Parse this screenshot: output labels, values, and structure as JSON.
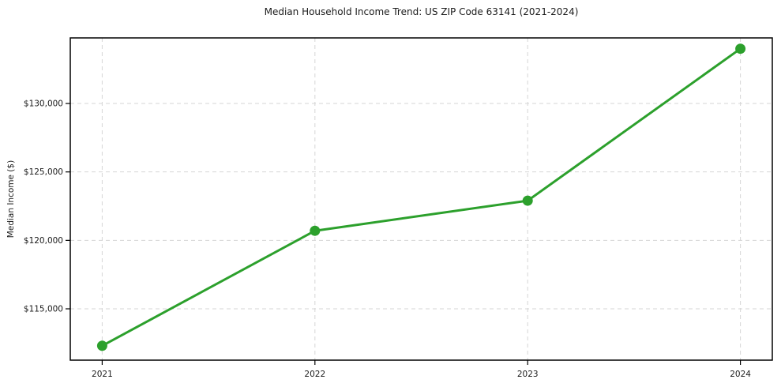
{
  "chart_data": {
    "type": "line",
    "title": "Median Household Income Trend: US ZIP Code 63141 (2021-2024)",
    "xlabel": "",
    "ylabel": "Median Income ($)",
    "categories": [
      "2021",
      "2022",
      "2023",
      "2024"
    ],
    "series": [
      {
        "name": "Median Household Income",
        "values": [
          112300,
          120700,
          122900,
          134000
        ],
        "color": "#2ca02c",
        "marker": "circle"
      }
    ],
    "ylim": [
      111250,
      134790
    ],
    "y_ticks": [
      {
        "value": 115000,
        "label": "$115,000"
      },
      {
        "value": 120000,
        "label": "$120,000"
      },
      {
        "value": 125000,
        "label": "$125,000"
      },
      {
        "value": 130000,
        "label": "$130,000"
      }
    ],
    "grid": true,
    "grid_style": "dashed",
    "legend_position": "none",
    "colors": {
      "background": "#ffffff",
      "grid": "#d6d6d6",
      "spine": "#000000",
      "text": "#1a1a1a"
    }
  }
}
